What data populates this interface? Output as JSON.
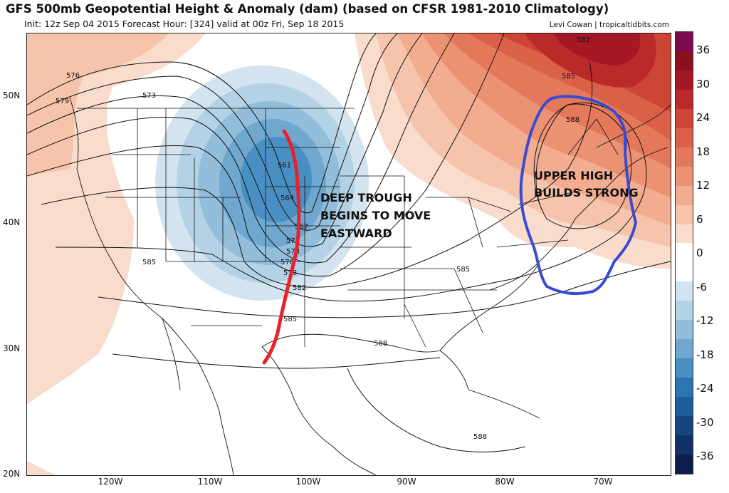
{
  "header": {
    "title": "GFS 500mb Geopotential Height & Anomaly (dam) (based on CFSR 1981-2010 Climatology)",
    "subtitle": "Init: 12z Sep 04 2015   Forecast Hour: [324]   valid at 00z Fri, Sep 18 2015",
    "credit": "Levi Cowan | tropicaltidbits.com"
  },
  "axes": {
    "lat_labels": [
      "50N",
      "40N",
      "30N",
      "20N"
    ],
    "lon_labels": [
      "120W",
      "110W",
      "100W",
      "90W",
      "80W",
      "70W"
    ]
  },
  "contours": {
    "labels": [
      "576",
      "573",
      "579",
      "585",
      "561",
      "564",
      "567",
      "570",
      "573",
      "576",
      "579",
      "582",
      "585",
      "585",
      "588",
      "588",
      "582",
      "585",
      "588"
    ]
  },
  "annotations": {
    "trough": [
      "DEEP TROUGH",
      "BEGINS TO MOVE",
      "EASTWARD"
    ],
    "high": [
      "UPPER HIGH",
      "BUILDS STRONG"
    ],
    "trough_color": "#e8222a",
    "high_color": "#3a4bd2"
  },
  "colorbar": {
    "labels": [
      "36",
      "30",
      "24",
      "18",
      "12",
      "6",
      "0",
      "-6",
      "-12",
      "-18",
      "-24",
      "-30",
      "-36"
    ],
    "colors": [
      "#7d0a4f",
      "#8c0f1e",
      "#a41724",
      "#bb2a2b",
      "#cc4537",
      "#db6048",
      "#e4785b",
      "#eb9273",
      "#f2ac8f",
      "#f6c4ab",
      "#fadccc",
      "#ffffff",
      "#ffffff",
      "#d3e3ef",
      "#b4d2e6",
      "#93bedb",
      "#6fa7cf",
      "#4a8fc2",
      "#2d75b2",
      "#1f5c9a",
      "#17457f",
      "#113066",
      "#0b1e4c"
    ]
  }
}
